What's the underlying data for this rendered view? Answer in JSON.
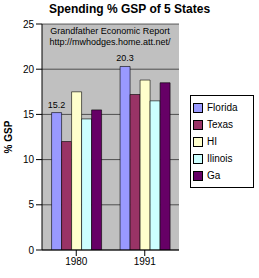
{
  "chart_data": {
    "type": "bar",
    "title": "Spending % GSP of 5 States",
    "subtitle": "Grandfather Economic Report",
    "annotation": "http://mwhodges.home.att.net/",
    "ylabel": "% GSP",
    "categories": [
      "1980",
      "1991"
    ],
    "series": [
      {
        "name": "Florida",
        "color": "#9999ff",
        "values": [
          15.2,
          20.3
        ],
        "data_labels": true
      },
      {
        "name": "Texas",
        "color": "#993366",
        "values": [
          12,
          17.2
        ]
      },
      {
        "name": "HI",
        "color": "#ffffcc",
        "values": [
          17.5,
          18.8
        ]
      },
      {
        "name": "Ilinois",
        "color": "#ccffff",
        "values": [
          14.5,
          16.5
        ]
      },
      {
        "name": "Ga",
        "color": "#660066",
        "values": [
          15.5,
          18.5
        ]
      }
    ],
    "ylim": [
      0,
      25
    ],
    "yticks": [
      0,
      5,
      10,
      15,
      20,
      25
    ],
    "grid": true,
    "legend": "right"
  }
}
